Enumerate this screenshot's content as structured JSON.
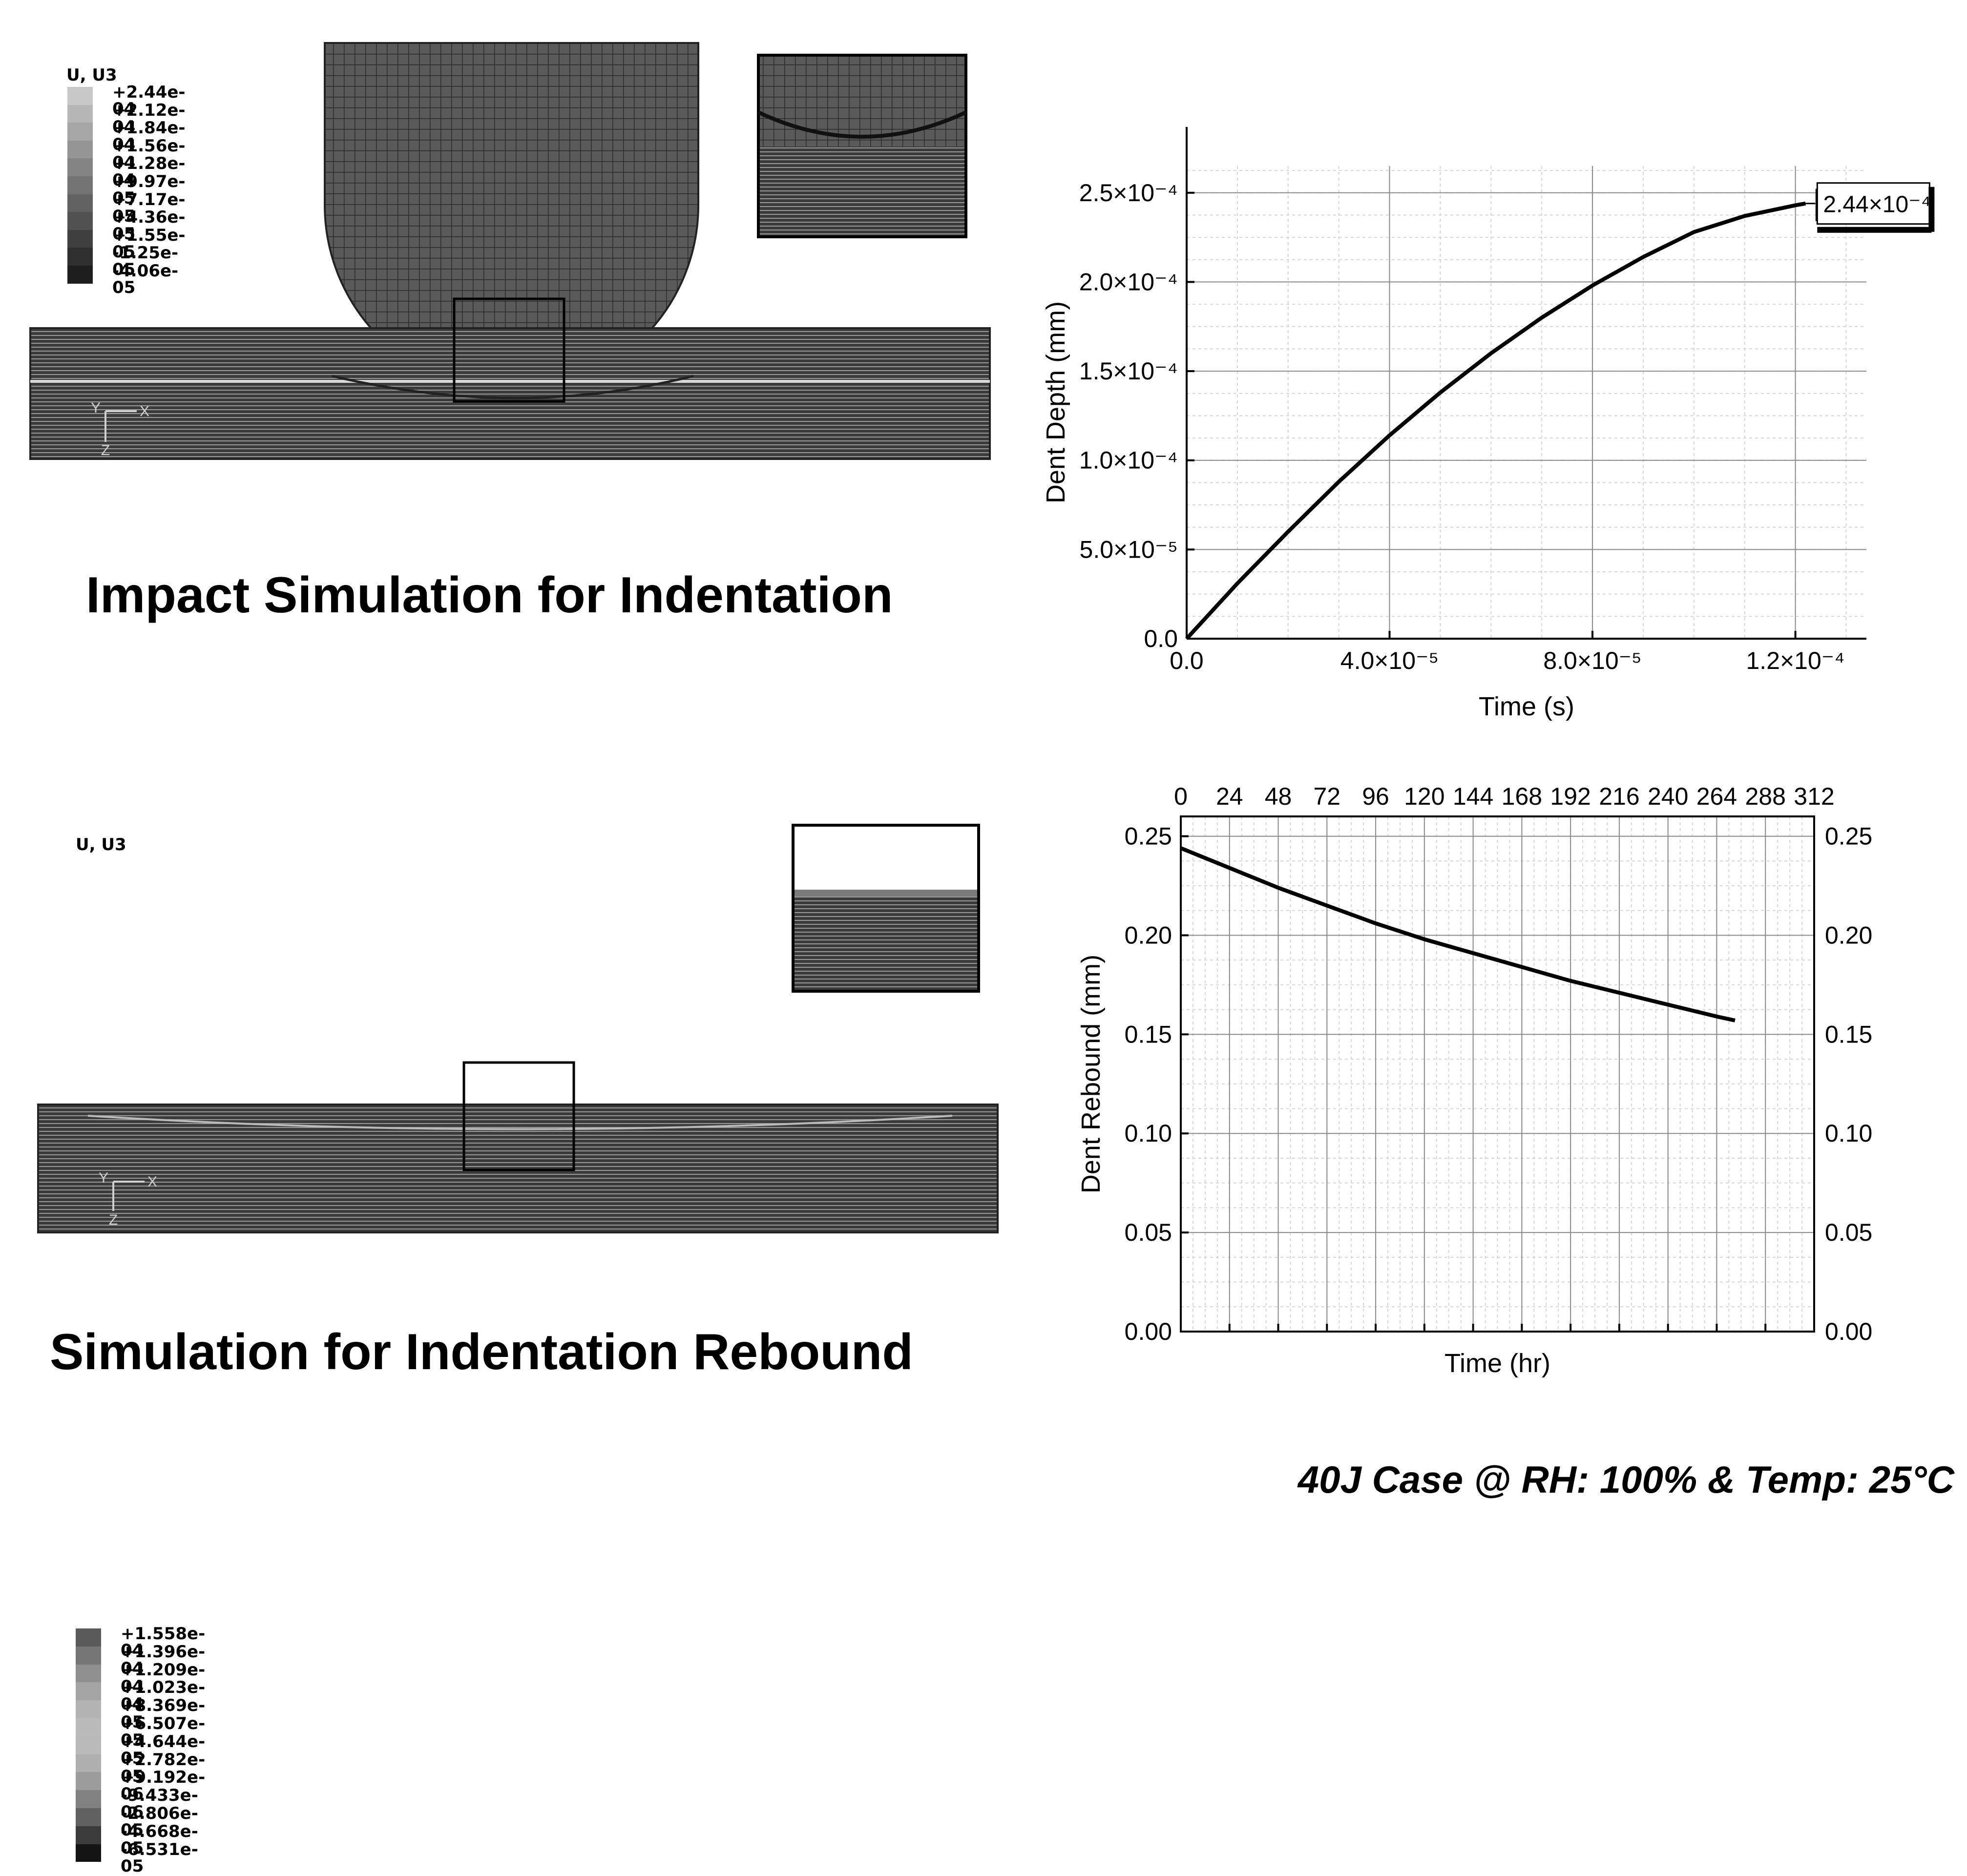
{
  "top_simulation": {
    "legend_title": "U, U3",
    "legend_values": [
      "+2.44e-04",
      "+2.12e-04",
      "+1.84e-04",
      "+1.56e-04",
      "+1.28e-04",
      "+9.97e-05",
      "+7.17e-05",
      "+4.36e-05",
      "+1.55e-05",
      "-1.25e-05",
      "-4.06e-05"
    ],
    "title": "Impact Simulation for Indentation",
    "triad": {
      "y": "Y",
      "x": "X",
      "z": "Z"
    }
  },
  "bottom_simulation": {
    "legend_title": "U, U3",
    "legend_values": [
      "+1.558e-04",
      "+1.396e-04",
      "+1.209e-04",
      "+1.023e-04",
      "+8.369e-05",
      "+6.507e-05",
      "+4.644e-05",
      "+2.782e-05",
      "+9.192e-06",
      "-9.433e-06",
      "-2.806e-05",
      "-4.668e-05",
      "-6.531e-05"
    ],
    "title": "Simulation for Indentation Rebound",
    "triad": {
      "y": "Y",
      "x": "X",
      "z": "Z"
    }
  },
  "footer": "40J Case @ RH: 100% & Temp: 25°C",
  "chart_data": [
    {
      "type": "line",
      "xlabel": "Time (s)",
      "ylabel": "Dent Depth (mm)",
      "xlim": [
        0,
        0.000134
      ],
      "ylim": [
        0,
        0.000265
      ],
      "x_ticks": [
        "0.0",
        "4.0×10⁻⁵",
        "8.0×10⁻⁵",
        "1.2×10⁻⁴"
      ],
      "x_tick_values": [
        0,
        4e-05,
        8e-05,
        0.00012
      ],
      "y_ticks": [
        "0.0",
        "5.0×10⁻⁵",
        "1.0×10⁻⁴",
        "1.5×10⁻⁴",
        "2.0×10⁻⁴",
        "2.5×10⁻⁴"
      ],
      "y_tick_values": [
        0,
        5e-05,
        0.0001,
        0.00015,
        0.0002,
        0.00025
      ],
      "grid": true,
      "annotation": "2.44×10⁻⁴",
      "series": [
        {
          "x": [
            0,
            1e-05,
            2e-05,
            3e-05,
            4e-05,
            5e-05,
            6e-05,
            7e-05,
            8e-05,
            9e-05,
            0.0001,
            0.00011,
            0.00012,
            0.000122
          ],
          "y": [
            0,
            3.1e-05,
            6e-05,
            8.8e-05,
            0.000114,
            0.000138,
            0.00016,
            0.00018,
            0.000198,
            0.000214,
            0.000228,
            0.000237,
            0.000243,
            0.000244
          ]
        }
      ]
    },
    {
      "type": "line",
      "xlabel": "Time (hr)",
      "ylabel": "Dent Rebound (mm)",
      "xlim": [
        0,
        312
      ],
      "ylim": [
        0,
        0.26
      ],
      "x_ticks": [
        "0",
        "24",
        "48",
        "72",
        "96",
        "120",
        "144",
        "168",
        "192",
        "216",
        "240",
        "264",
        "288",
        "312"
      ],
      "x_tick_values": [
        0,
        24,
        48,
        72,
        96,
        120,
        144,
        168,
        192,
        216,
        240,
        264,
        288,
        312
      ],
      "y_ticks": [
        "0.00",
        "0.05",
        "0.10",
        "0.15",
        "0.20",
        "0.25"
      ],
      "y_tick_values": [
        0,
        0.05,
        0.1,
        0.15,
        0.2,
        0.25
      ],
      "grid": true,
      "series": [
        {
          "x": [
            0,
            24,
            48,
            72,
            96,
            120,
            144,
            168,
            192,
            216,
            240,
            264,
            273
          ],
          "y": [
            0.244,
            0.234,
            0.224,
            0.215,
            0.206,
            0.198,
            0.191,
            0.184,
            0.177,
            0.171,
            0.165,
            0.159,
            0.157
          ]
        }
      ]
    }
  ]
}
